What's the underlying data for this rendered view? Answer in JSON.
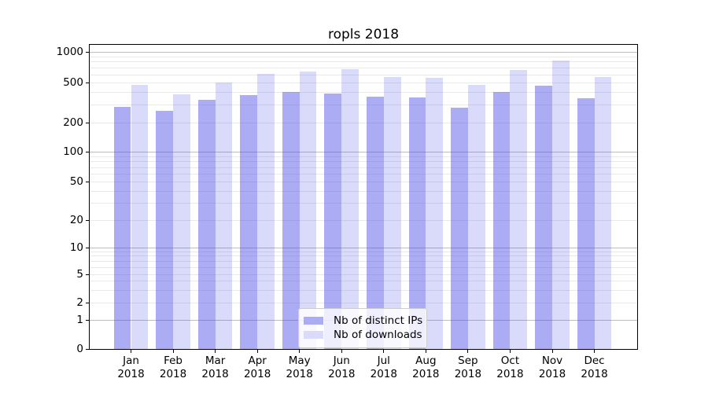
{
  "chart_data": {
    "type": "bar",
    "title": "ropls 2018",
    "categories": [
      "Jan",
      "Feb",
      "Mar",
      "Apr",
      "May",
      "Jun",
      "Jul",
      "Aug",
      "Sep",
      "Oct",
      "Nov",
      "Dec"
    ],
    "x_tick_year": "2018",
    "series": [
      {
        "name": "Nb of distinct IPs",
        "color": "#acacf5",
        "fill": "rgba(70,70,232,0.45)",
        "values": [
          290,
          265,
          340,
          380,
          405,
          395,
          365,
          360,
          285,
          405,
          475,
          350
        ]
      },
      {
        "name": "Nb of downloads",
        "color": "#dadafa",
        "fill": "rgba(70,70,232,0.2)",
        "values": [
          480,
          385,
          505,
          615,
          645,
          685,
          570,
          560,
          480,
          665,
          820,
          575
        ]
      }
    ],
    "yscale": "symlog",
    "ylim": [
      0,
      1200
    ],
    "y_ticks": [
      0,
      1,
      2,
      5,
      10,
      20,
      50,
      100,
      200,
      500,
      1000
    ],
    "y_major_gridlines": [
      1,
      10,
      100,
      1000
    ],
    "grid": "both",
    "legend_position": "lower center"
  }
}
